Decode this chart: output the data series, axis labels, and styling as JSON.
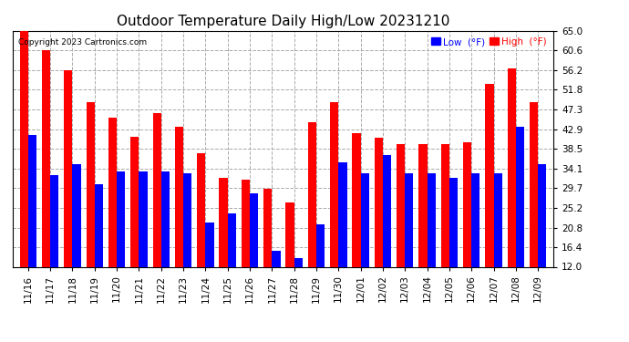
{
  "title": "Outdoor Temperature Daily High/Low 20231210",
  "copyright": "Copyright 2023 Cartronics.com",
  "ylabel": "(°F)",
  "ylim": [
    12.0,
    65.0
  ],
  "yticks": [
    12.0,
    16.4,
    20.8,
    25.2,
    29.7,
    34.1,
    38.5,
    42.9,
    47.3,
    51.8,
    56.2,
    60.6,
    65.0
  ],
  "dates": [
    "11/16",
    "11/17",
    "11/18",
    "11/19",
    "11/20",
    "11/21",
    "11/22",
    "11/23",
    "11/24",
    "11/25",
    "11/26",
    "11/27",
    "11/28",
    "11/29",
    "11/30",
    "12/01",
    "12/02",
    "12/03",
    "12/04",
    "12/05",
    "12/06",
    "12/07",
    "12/08",
    "12/09"
  ],
  "highs": [
    65.0,
    60.6,
    56.2,
    49.0,
    45.5,
    41.2,
    46.5,
    43.5,
    37.5,
    32.0,
    31.5,
    29.5,
    26.5,
    44.5,
    49.0,
    42.0,
    41.0,
    39.5,
    39.5,
    39.5,
    40.0,
    53.0,
    56.5,
    49.0
  ],
  "lows": [
    41.5,
    32.5,
    35.0,
    30.5,
    33.5,
    33.5,
    33.5,
    33.0,
    22.0,
    24.0,
    28.5,
    15.5,
    14.0,
    21.5,
    35.5,
    33.0,
    37.0,
    33.0,
    33.0,
    32.0,
    33.0,
    33.0,
    43.5,
    35.0
  ],
  "bar_width": 0.38,
  "high_color": "#ff0000",
  "low_color": "#0000ff",
  "bg_color": "#ffffff",
  "grid_color": "#aaaaaa",
  "title_fontsize": 11,
  "tick_fontsize": 7.5,
  "ymin": 12.0
}
